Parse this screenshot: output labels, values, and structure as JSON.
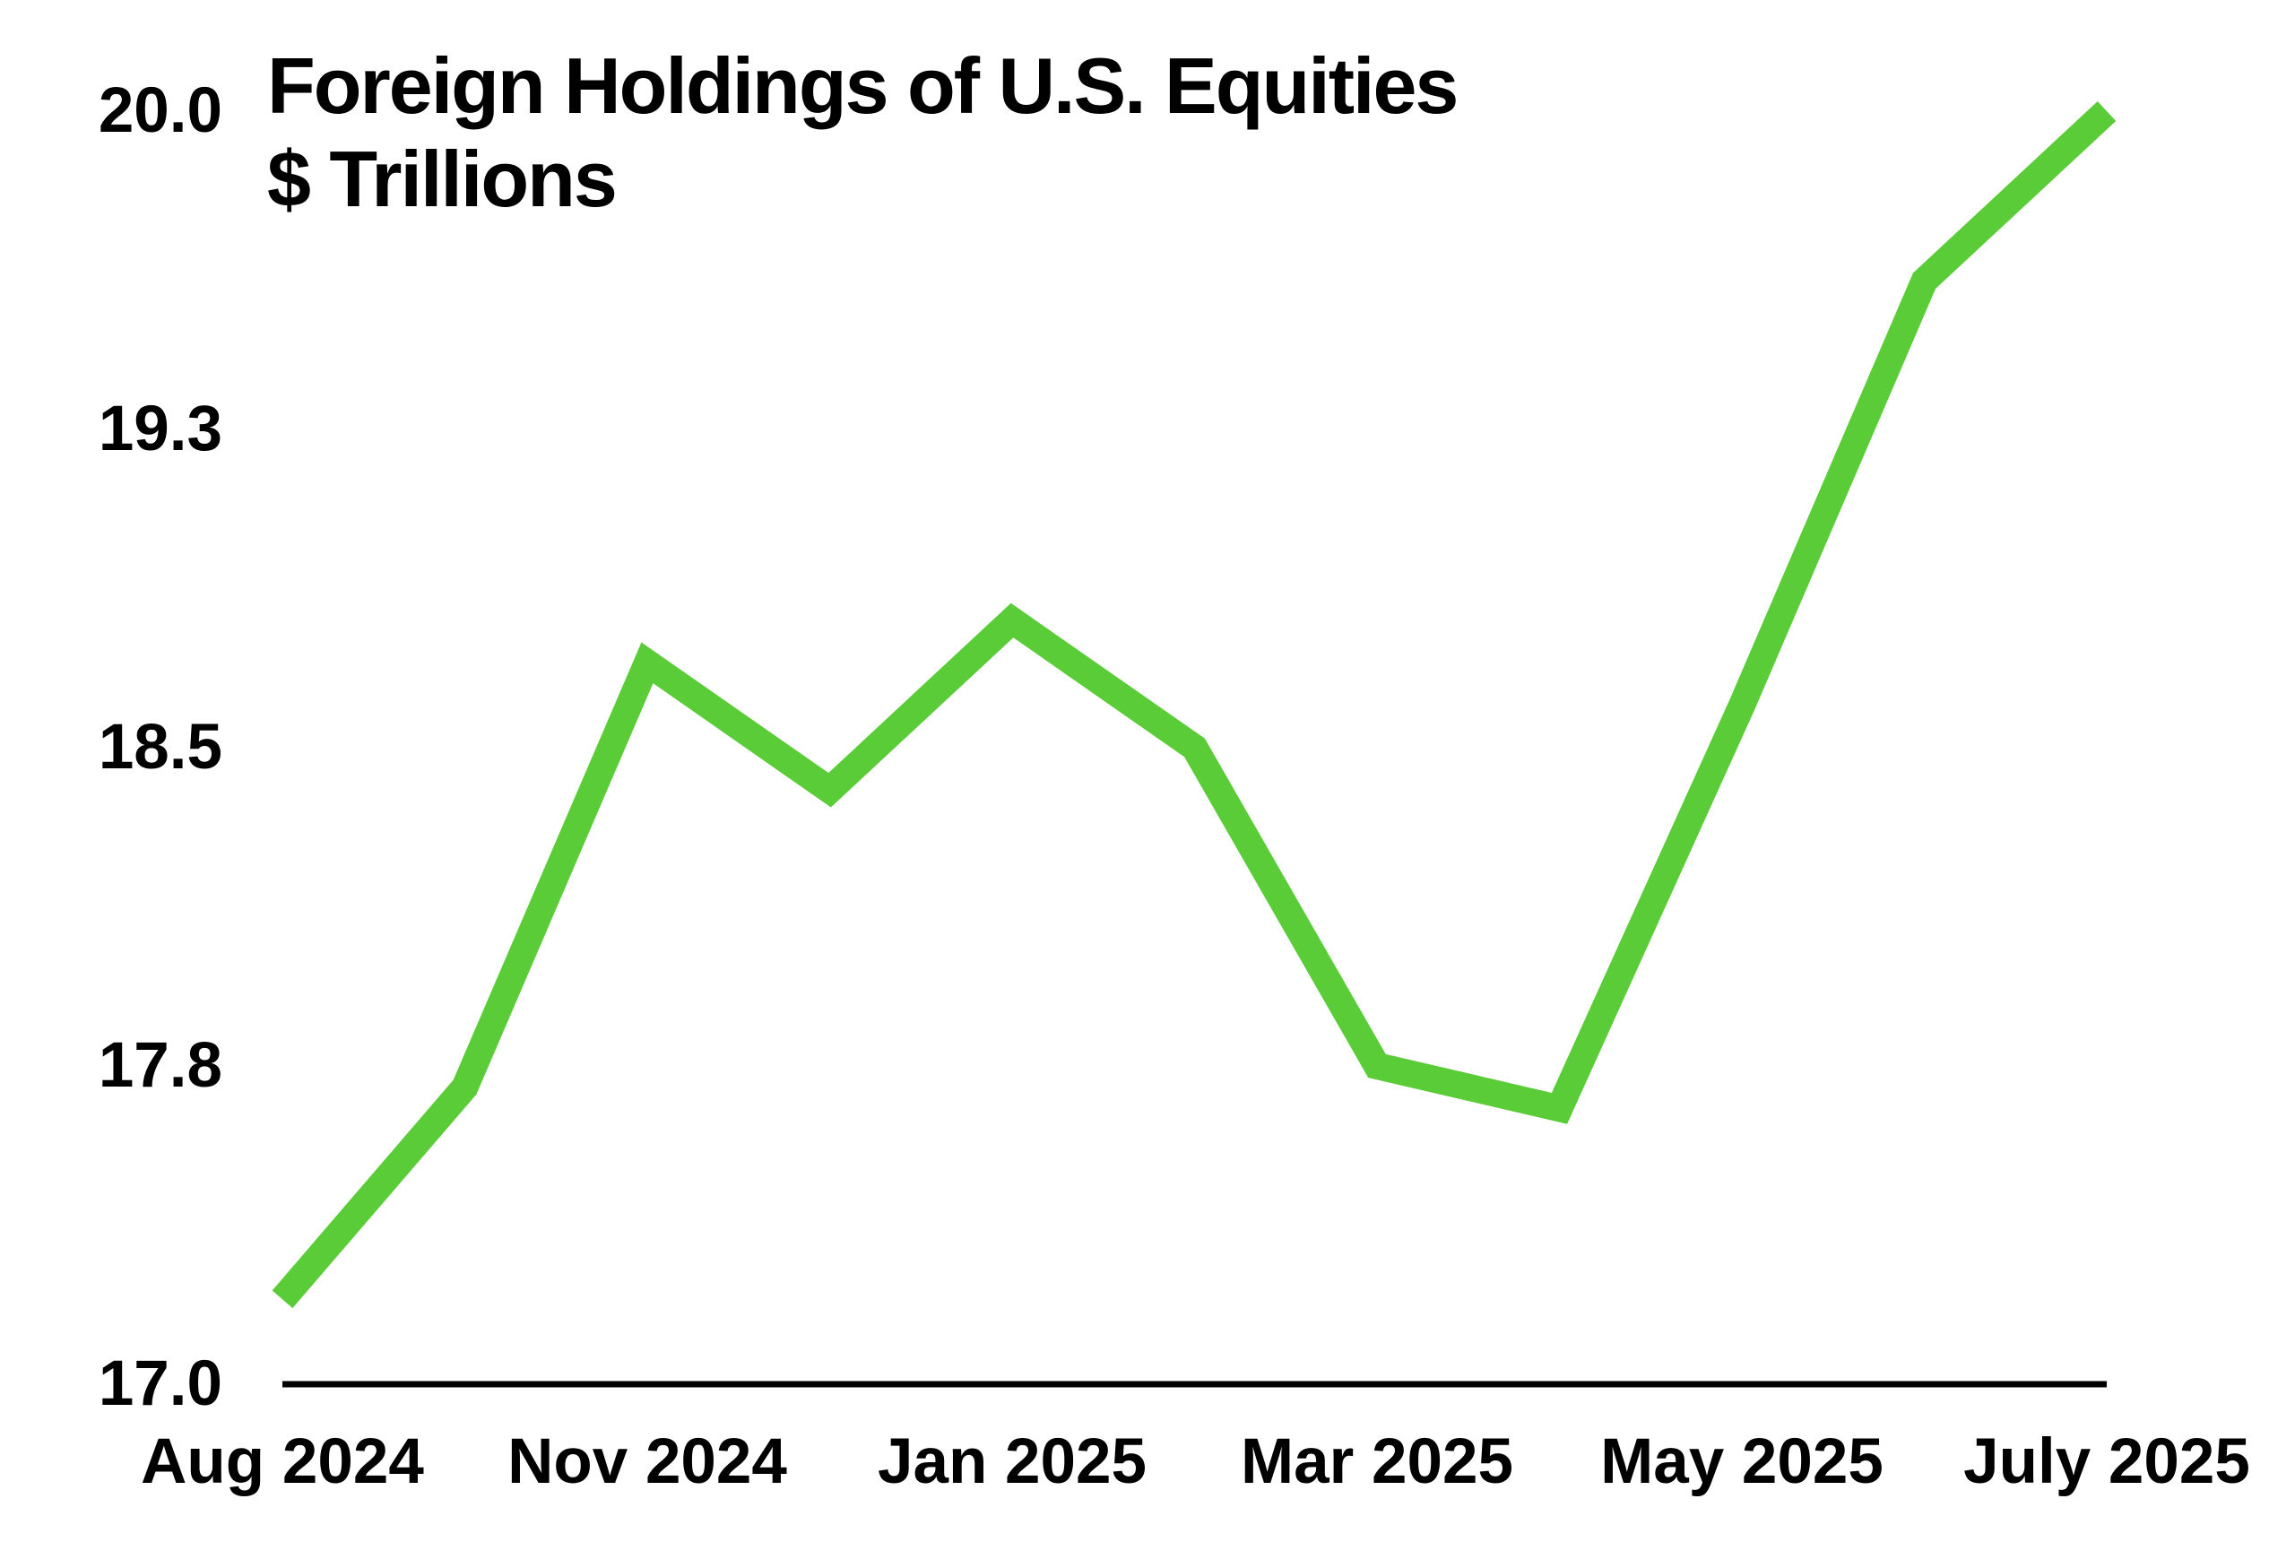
{
  "title": {
    "line1": "Foreign Holdings of U.S. Equities",
    "line2": "$ Trillions"
  },
  "colors": {
    "line": "#5ACC38",
    "axis": "#000000",
    "text": "#000000",
    "background": "#ffffff"
  },
  "chart_data": {
    "type": "line",
    "title": "Foreign Holdings of U.S. Equities",
    "subtitle": "$ Trillions",
    "ylabel": "$ Trillions",
    "xlabel": "",
    "ylim": [
      17.0,
      20.0
    ],
    "grid": false,
    "legend_position": "none",
    "marker": "none",
    "line_color": "#5ACC38",
    "num_points": 11,
    "series": [
      {
        "name": "Foreign Holdings of U.S. Equities ($ Trillions)",
        "values": [
          17.2,
          17.7,
          18.7,
          18.4,
          18.8,
          18.5,
          17.75,
          17.65,
          18.6,
          19.6,
          20.0
        ]
      }
    ],
    "x_tick_labels": [
      {
        "index": 0,
        "label": "Aug 2024"
      },
      {
        "index": 2,
        "label": "Nov 2024"
      },
      {
        "index": 4,
        "label": "Jan 2025"
      },
      {
        "index": 6,
        "label": "Mar 2025"
      },
      {
        "index": 8,
        "label": "May 2025"
      },
      {
        "index": 10,
        "label": "July 2025"
      }
    ],
    "y_ticks": [
      {
        "position": 20.0,
        "label": "20.0"
      },
      {
        "position": 19.25,
        "label": "19.3"
      },
      {
        "position": 18.5,
        "label": "18.5"
      },
      {
        "position": 17.75,
        "label": "17.8"
      },
      {
        "position": 17.0,
        "label": "17.0"
      }
    ]
  }
}
